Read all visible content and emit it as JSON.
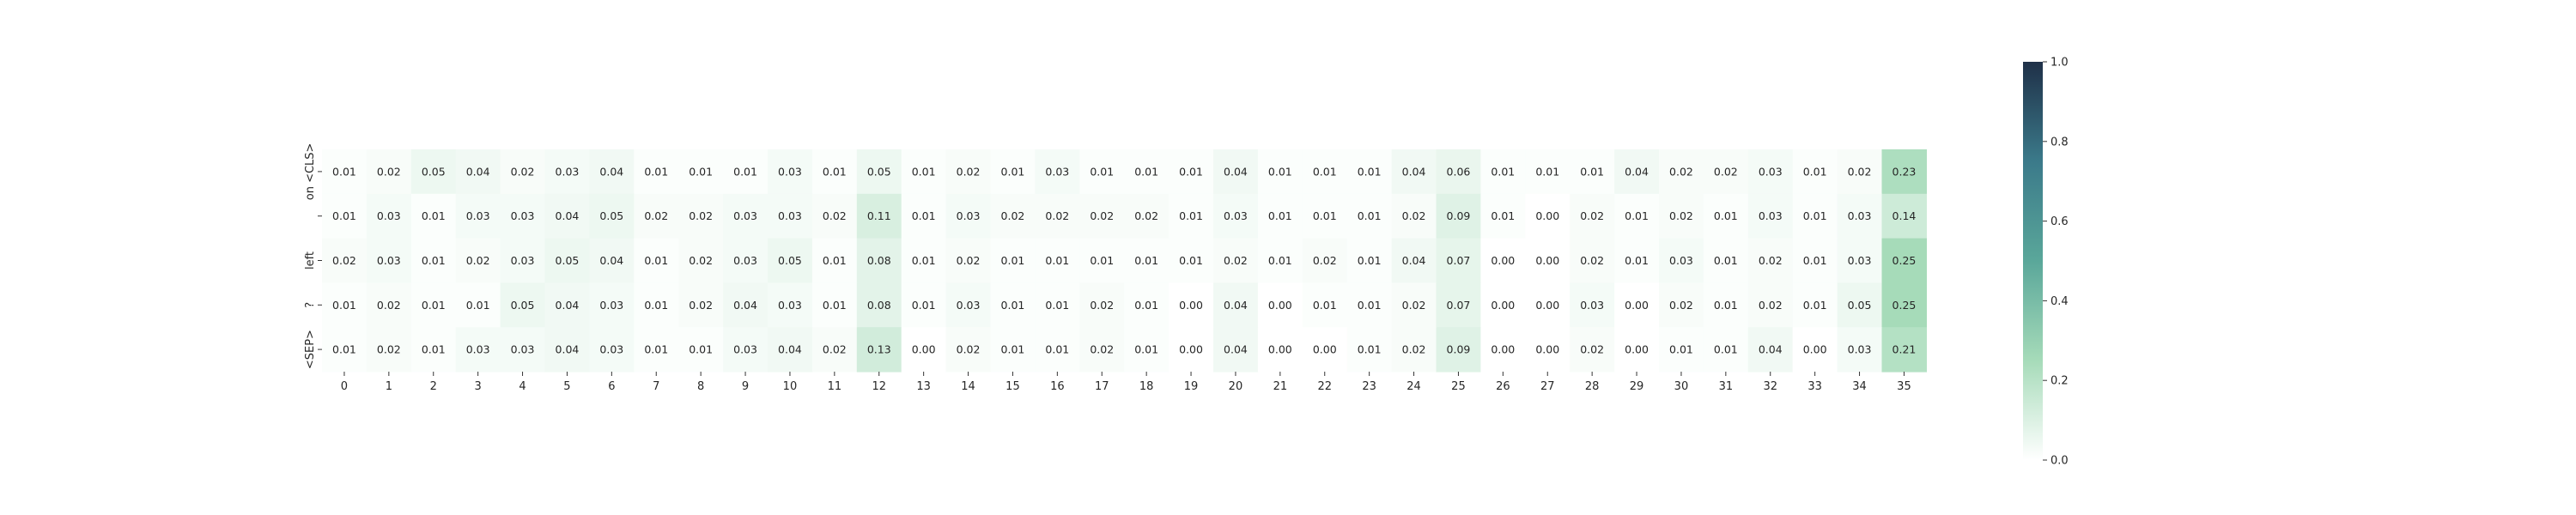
{
  "chart_data": {
    "type": "heatmap",
    "title": "",
    "xlabel": "",
    "ylabel": "",
    "x_labels": [
      "0",
      "1",
      "2",
      "3",
      "4",
      "5",
      "6",
      "7",
      "8",
      "9",
      "10",
      "11",
      "12",
      "13",
      "14",
      "15",
      "16",
      "17",
      "18",
      "19",
      "20",
      "21",
      "22",
      "23",
      "24",
      "25",
      "26",
      "27",
      "28",
      "29",
      "30",
      "31",
      "32",
      "33",
      "34",
      "35"
    ],
    "y_labels": [
      "on <CLS>",
      "",
      "left",
      "?",
      "<SEP>"
    ],
    "values": [
      [
        0.01,
        0.02,
        0.05,
        0.04,
        0.02,
        0.03,
        0.04,
        0.01,
        0.01,
        0.01,
        0.03,
        0.01,
        0.05,
        0.01,
        0.02,
        0.01,
        0.03,
        0.01,
        0.01,
        0.01,
        0.04,
        0.01,
        0.01,
        0.01,
        0.04,
        0.06,
        0.01,
        0.01,
        0.01,
        0.04,
        0.02,
        0.02,
        0.03,
        0.01,
        0.02,
        0.23
      ],
      [
        0.01,
        0.03,
        0.01,
        0.03,
        0.03,
        0.04,
        0.05,
        0.02,
        0.02,
        0.03,
        0.03,
        0.02,
        0.11,
        0.01,
        0.03,
        0.02,
        0.02,
        0.02,
        0.02,
        0.01,
        0.03,
        0.01,
        0.01,
        0.01,
        0.02,
        0.09,
        0.01,
        0.0,
        0.02,
        0.01,
        0.02,
        0.01,
        0.03,
        0.01,
        0.03,
        0.14
      ],
      [
        0.02,
        0.03,
        0.01,
        0.02,
        0.03,
        0.05,
        0.04,
        0.01,
        0.02,
        0.03,
        0.05,
        0.01,
        0.08,
        0.01,
        0.02,
        0.01,
        0.01,
        0.01,
        0.01,
        0.01,
        0.02,
        0.01,
        0.02,
        0.01,
        0.04,
        0.07,
        0.0,
        0.0,
        0.02,
        0.01,
        0.03,
        0.01,
        0.02,
        0.01,
        0.03,
        0.25
      ],
      [
        0.01,
        0.02,
        0.01,
        0.01,
        0.05,
        0.04,
        0.03,
        0.01,
        0.02,
        0.04,
        0.03,
        0.01,
        0.08,
        0.01,
        0.03,
        0.01,
        0.01,
        0.02,
        0.01,
        0.0,
        0.04,
        0.0,
        0.01,
        0.01,
        0.02,
        0.07,
        0.0,
        0.0,
        0.03,
        0.0,
        0.02,
        0.01,
        0.02,
        0.01,
        0.05,
        0.25
      ],
      [
        0.01,
        0.02,
        0.01,
        0.03,
        0.03,
        0.04,
        0.03,
        0.01,
        0.01,
        0.03,
        0.04,
        0.02,
        0.13,
        0.0,
        0.02,
        0.01,
        0.01,
        0.02,
        0.01,
        0.0,
        0.04,
        0.0,
        0.0,
        0.01,
        0.02,
        0.09,
        0.0,
        0.0,
        0.02,
        0.0,
        0.01,
        0.01,
        0.04,
        0.0,
        0.03,
        0.21
      ]
    ],
    "colorbar": {
      "vmin": 0.0,
      "vmax": 1.0,
      "ticks": [
        "0.0",
        "0.2",
        "0.4",
        "0.6",
        "0.8",
        "1.0"
      ],
      "colormap": [
        "#ffffff",
        "#a6dbb9",
        "#5aa79a",
        "#3b7a8a",
        "#1f3048"
      ]
    },
    "value_format": "2 decimals",
    "grid": false,
    "legend": "colorbar-right"
  }
}
